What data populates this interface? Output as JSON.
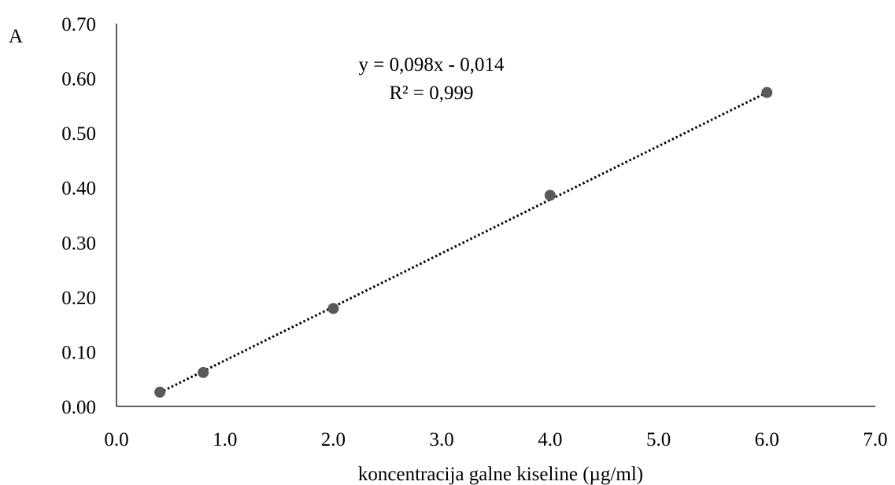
{
  "chart_data": {
    "type": "scatter",
    "title": "",
    "xlabel": "koncentracija galne kiseline (µg/ml)",
    "ylabel": "A",
    "xlim": [
      0,
      7
    ],
    "ylim": [
      0,
      0.7
    ],
    "x_ticks": [
      "0.0",
      "1.0",
      "2.0",
      "3.0",
      "4.0",
      "5.0",
      "6.0",
      "7.0"
    ],
    "y_ticks": [
      "0.00",
      "0.10",
      "0.20",
      "0.30",
      "0.40",
      "0.50",
      "0.60",
      "0.70"
    ],
    "grid": false,
    "legend": "none",
    "series": [
      {
        "x": [
          0.4,
          0.8,
          2.0,
          4.0,
          6.0
        ],
        "y": [
          0.026,
          0.062,
          0.179,
          0.386,
          0.574
        ],
        "marker_color": "#595959"
      }
    ],
    "trendline": {
      "type": "linear",
      "style": "dotted",
      "color": "#000000",
      "slope": 0.098,
      "intercept": -0.014,
      "x_range": [
        0.4,
        6.0
      ],
      "equation": "y = 0,098x - 0,014",
      "r_squared": "R² = 0,999"
    }
  }
}
